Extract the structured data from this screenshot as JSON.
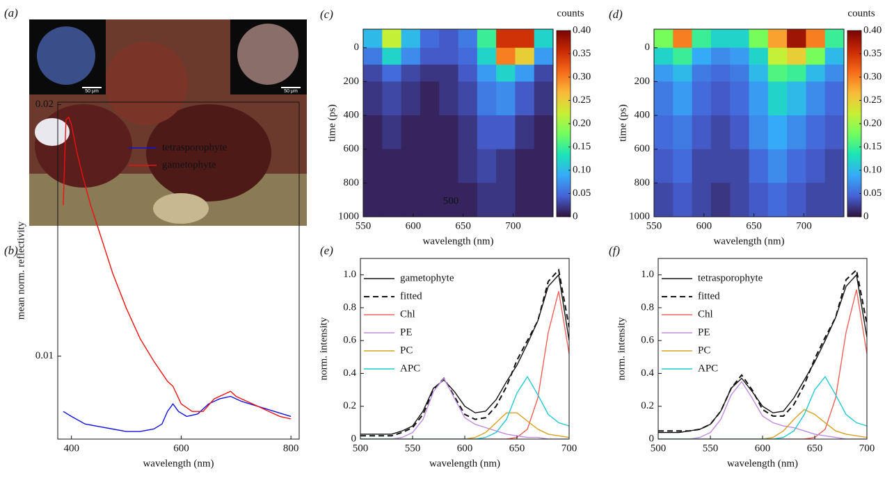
{
  "panel_a": {
    "label": "(a)",
    "scale_bar_labels": [
      "50 μm",
      "50 μm"
    ]
  },
  "chart_data": [
    {
      "type": "line",
      "panel": "(b)",
      "xlabel": "wavelength (nm)",
      "ylabel": "mean norm. reflectivity",
      "xlim": [
        375,
        815
      ],
      "ylim": [
        0.0067,
        0.0201
      ],
      "xticks": [
        400,
        600,
        800
      ],
      "yticks": [
        0.01,
        0.02
      ],
      "legend": "upper center",
      "series": [
        {
          "name": "tetrasporophyte",
          "color": "#1010e0",
          "x": [
            385,
            400,
            425,
            450,
            475,
            500,
            525,
            550,
            565,
            575,
            585,
            595,
            610,
            630,
            650,
            670,
            690,
            710,
            740,
            770,
            800
          ],
          "values": [
            0.0078,
            0.0076,
            0.0073,
            0.0072,
            0.0071,
            0.007,
            0.007,
            0.0071,
            0.0073,
            0.0078,
            0.0081,
            0.0078,
            0.0076,
            0.0077,
            0.0081,
            0.0083,
            0.0084,
            0.0082,
            0.008,
            0.0078,
            0.0076
          ]
        },
        {
          "name": "gametophyte",
          "color": "#f01010",
          "x": [
            385,
            390,
            395,
            400,
            410,
            420,
            435,
            450,
            475,
            500,
            525,
            550,
            575,
            585,
            600,
            620,
            640,
            660,
            680,
            690,
            700,
            720,
            740,
            760,
            780,
            800
          ],
          "values": [
            0.016,
            0.0194,
            0.0195,
            0.0192,
            0.0181,
            0.0172,
            0.016,
            0.015,
            0.0133,
            0.0119,
            0.0107,
            0.0098,
            0.009,
            0.0088,
            0.0081,
            0.0078,
            0.0078,
            0.0083,
            0.0085,
            0.0086,
            0.0084,
            0.0082,
            0.008,
            0.0078,
            0.0076,
            0.0075
          ]
        }
      ]
    },
    {
      "type": "heatmap",
      "panel": "(c)",
      "xlabel": "wavelength (nm)",
      "ylabel": "time (ps)",
      "colorbar_title": "counts",
      "annotation": "500",
      "xlim": [
        550,
        740
      ],
      "ylim": [
        1000,
        -110
      ],
      "xticks": [
        550,
        600,
        650,
        700
      ],
      "yticks": [
        0,
        200,
        400,
        600,
        800,
        1000
      ],
      "clim": [
        0,
        0.4
      ],
      "cticks": [
        0,
        0.05,
        {
          "value": 0.1,
          "label": "0.10"
        },
        0.15,
        {
          "value": 0.2,
          "label": "0.20"
        },
        0.25,
        {
          "value": 0.3,
          "label": "0.30"
        },
        0.35,
        {
          "value": 0.4,
          "label": "0.40"
        }
      ],
      "colormap": [
        "#30123b",
        "#4662d7",
        "#36aaf9",
        "#1ae4b6",
        "#72fe5e",
        "#c8ef34",
        "#faba39",
        "#f66b19",
        "#ca2a04",
        "#7a0403"
      ],
      "xbins": [
        550,
        569,
        588,
        607,
        626,
        645,
        664,
        683,
        702,
        721,
        740
      ],
      "ybins": [
        -110,
        0,
        100,
        200,
        400,
        600,
        800,
        1000
      ],
      "z": [
        [
          0.1,
          0.22,
          0.1,
          0.05,
          0.04,
          0.06,
          0.15,
          0.35,
          0.35,
          0.12
        ],
        [
          0.06,
          0.12,
          0.07,
          0.04,
          0.04,
          0.05,
          0.12,
          0.3,
          0.25,
          0.08
        ],
        [
          0.03,
          0.05,
          0.03,
          0.02,
          0.02,
          0.04,
          0.08,
          0.12,
          0.08,
          0.03
        ],
        [
          0.02,
          0.03,
          0.02,
          0.01,
          0.02,
          0.03,
          0.06,
          0.07,
          0.04,
          0.02
        ],
        [
          0.01,
          0.02,
          0.01,
          0.01,
          0.01,
          0.02,
          0.04,
          0.04,
          0.02,
          0.01
        ],
        [
          0.01,
          0.01,
          0.01,
          0.01,
          0.01,
          0.02,
          0.03,
          0.02,
          0.01,
          0.01
        ],
        [
          0.01,
          0.01,
          0.01,
          0.01,
          0.01,
          0.01,
          0.02,
          0.02,
          0.01,
          0.01
        ]
      ]
    },
    {
      "type": "heatmap",
      "panel": "(d)",
      "xlabel": "wavelength (nm)",
      "ylabel": "time (ps)",
      "colorbar_title": "counts",
      "xlim": [
        550,
        740
      ],
      "ylim": [
        1000,
        -110
      ],
      "xticks": [
        550,
        600,
        650,
        700
      ],
      "yticks": [
        0,
        200,
        400,
        600,
        800,
        1000
      ],
      "clim": [
        0,
        0.4
      ],
      "cticks": [
        0,
        0.05,
        {
          "value": 0.1,
          "label": "0.10"
        },
        0.15,
        {
          "value": 0.2,
          "label": "0.20"
        },
        0.25,
        {
          "value": 0.3,
          "label": "0.30"
        },
        0.35,
        {
          "value": 0.4,
          "label": "0.40"
        }
      ],
      "colormap": [
        "#30123b",
        "#4662d7",
        "#36aaf9",
        "#1ae4b6",
        "#72fe5e",
        "#c8ef34",
        "#faba39",
        "#f66b19",
        "#ca2a04",
        "#7a0403"
      ],
      "xbins": [
        550,
        569,
        588,
        607,
        626,
        645,
        664,
        683,
        702,
        721,
        740
      ],
      "ybins": [
        -110,
        0,
        100,
        200,
        400,
        600,
        800,
        1000
      ],
      "z": [
        [
          0.18,
          0.3,
          0.15,
          0.12,
          0.12,
          0.18,
          0.28,
          0.38,
          0.3,
          0.15
        ],
        [
          0.12,
          0.15,
          0.09,
          0.07,
          0.08,
          0.12,
          0.22,
          0.25,
          0.18,
          0.1
        ],
        [
          0.08,
          0.1,
          0.06,
          0.05,
          0.06,
          0.1,
          0.16,
          0.15,
          0.1,
          0.07
        ],
        [
          0.06,
          0.08,
          0.05,
          0.04,
          0.05,
          0.08,
          0.12,
          0.1,
          0.07,
          0.05
        ],
        [
          0.05,
          0.06,
          0.04,
          0.03,
          0.04,
          0.07,
          0.09,
          0.07,
          0.05,
          0.04
        ],
        [
          0.04,
          0.05,
          0.03,
          0.03,
          0.03,
          0.05,
          0.07,
          0.05,
          0.04,
          0.03
        ],
        [
          0.03,
          0.04,
          0.03,
          0.02,
          0.03,
          0.04,
          0.05,
          0.04,
          0.03,
          0.03
        ]
      ]
    },
    {
      "type": "line",
      "panel": "(e)",
      "xlabel": "wavelength (nm)",
      "ylabel": "norm. intensity",
      "xlim": [
        500,
        700
      ],
      "ylim": [
        0,
        1.1
      ],
      "xticks": [
        500,
        550,
        600,
        650,
        700
      ],
      "yticks": [
        0,
        0.2,
        0.4,
        0.6,
        0.8,
        {
          "value": 1,
          "label": "1.0"
        }
      ],
      "legend": "upper left",
      "x": [
        500,
        510,
        520,
        530,
        540,
        550,
        560,
        570,
        580,
        590,
        600,
        610,
        620,
        630,
        640,
        650,
        660,
        670,
        680,
        690,
        700
      ],
      "series": [
        {
          "name": "gametophyte",
          "color": "#111111",
          "values": [
            0.03,
            0.03,
            0.03,
            0.03,
            0.05,
            0.08,
            0.17,
            0.31,
            0.36,
            0.29,
            0.2,
            0.16,
            0.17,
            0.24,
            0.35,
            0.45,
            0.58,
            0.72,
            0.93,
            1.0,
            0.6
          ]
        },
        {
          "name": "fitted",
          "color": "#111111",
          "dash": true,
          "values": [
            0.02,
            0.02,
            0.02,
            0.02,
            0.04,
            0.07,
            0.15,
            0.3,
            0.37,
            0.26,
            0.15,
            0.12,
            0.13,
            0.2,
            0.32,
            0.48,
            0.6,
            0.72,
            0.96,
            1.03,
            0.68
          ]
        },
        {
          "name": "Chl",
          "color": "#f0605a",
          "values": [
            0,
            0,
            0,
            0,
            0,
            0,
            0,
            0,
            0,
            0,
            0,
            0,
            0,
            0,
            0,
            0.01,
            0.06,
            0.25,
            0.65,
            0.9,
            0.52
          ]
        },
        {
          "name": "PE",
          "color": "#c08ae0",
          "values": [
            0,
            0,
            0,
            0,
            0.01,
            0.04,
            0.12,
            0.29,
            0.37,
            0.25,
            0.13,
            0.09,
            0.07,
            0.05,
            0.03,
            0.02,
            0.01,
            0.01,
            0,
            0,
            0
          ]
        },
        {
          "name": "PC",
          "color": "#d8a020",
          "values": [
            0,
            0,
            0,
            0,
            0,
            0,
            0,
            0,
            0,
            0,
            0,
            0.01,
            0.04,
            0.1,
            0.16,
            0.16,
            0.11,
            0.06,
            0.03,
            0.02,
            0.01
          ]
        },
        {
          "name": "APC",
          "color": "#20c8d0",
          "values": [
            0,
            0,
            0,
            0,
            0,
            0,
            0,
            0,
            0,
            0,
            0,
            0,
            0.01,
            0.04,
            0.12,
            0.28,
            0.38,
            0.27,
            0.15,
            0.1,
            0.08
          ]
        }
      ]
    },
    {
      "type": "line",
      "panel": "(f)",
      "xlabel": "wavelength (nm)",
      "ylabel": "norm. intensity",
      "xlim": [
        500,
        700
      ],
      "ylim": [
        0,
        1.1
      ],
      "xticks": [
        500,
        550,
        600,
        650,
        700
      ],
      "yticks": [
        0,
        0.2,
        0.4,
        0.6,
        0.8,
        {
          "value": 1,
          "label": "1.0"
        }
      ],
      "legend": "upper left",
      "x": [
        500,
        510,
        520,
        530,
        540,
        550,
        560,
        570,
        580,
        590,
        600,
        610,
        620,
        630,
        640,
        650,
        660,
        670,
        680,
        690,
        700
      ],
      "series": [
        {
          "name": "tetrasporophyte",
          "color": "#111111",
          "values": [
            0.04,
            0.04,
            0.04,
            0.05,
            0.06,
            0.09,
            0.17,
            0.31,
            0.37,
            0.29,
            0.2,
            0.16,
            0.17,
            0.25,
            0.36,
            0.47,
            0.6,
            0.74,
            0.93,
            1.0,
            0.62
          ]
        },
        {
          "name": "fitted",
          "color": "#111111",
          "dash": true,
          "values": [
            0.05,
            0.05,
            0.05,
            0.05,
            0.06,
            0.09,
            0.17,
            0.31,
            0.39,
            0.3,
            0.18,
            0.14,
            0.14,
            0.21,
            0.33,
            0.49,
            0.62,
            0.74,
            0.97,
            1.03,
            0.7
          ]
        },
        {
          "name": "Chl",
          "color": "#f0605a",
          "values": [
            0,
            0,
            0,
            0,
            0,
            0,
            0,
            0,
            0,
            0,
            0,
            0,
            0,
            0,
            0,
            0.01,
            0.06,
            0.25,
            0.65,
            0.91,
            0.52
          ]
        },
        {
          "name": "PE",
          "color": "#c08ae0",
          "values": [
            0,
            0,
            0,
            0,
            0.01,
            0.04,
            0.12,
            0.27,
            0.35,
            0.25,
            0.14,
            0.1,
            0.08,
            0.07,
            0.05,
            0.03,
            0.02,
            0.01,
            0,
            0,
            0
          ]
        },
        {
          "name": "PC",
          "color": "#d8a020",
          "values": [
            0,
            0,
            0,
            0,
            0,
            0,
            0,
            0,
            0,
            0,
            0,
            0.01,
            0.05,
            0.12,
            0.18,
            0.15,
            0.1,
            0.05,
            0.03,
            0.02,
            0.01
          ]
        },
        {
          "name": "APC",
          "color": "#20c8d0",
          "values": [
            0,
            0,
            0,
            0,
            0,
            0,
            0,
            0,
            0,
            0,
            0,
            0,
            0.01,
            0.05,
            0.15,
            0.3,
            0.38,
            0.27,
            0.15,
            0.1,
            0.08
          ]
        }
      ]
    }
  ]
}
